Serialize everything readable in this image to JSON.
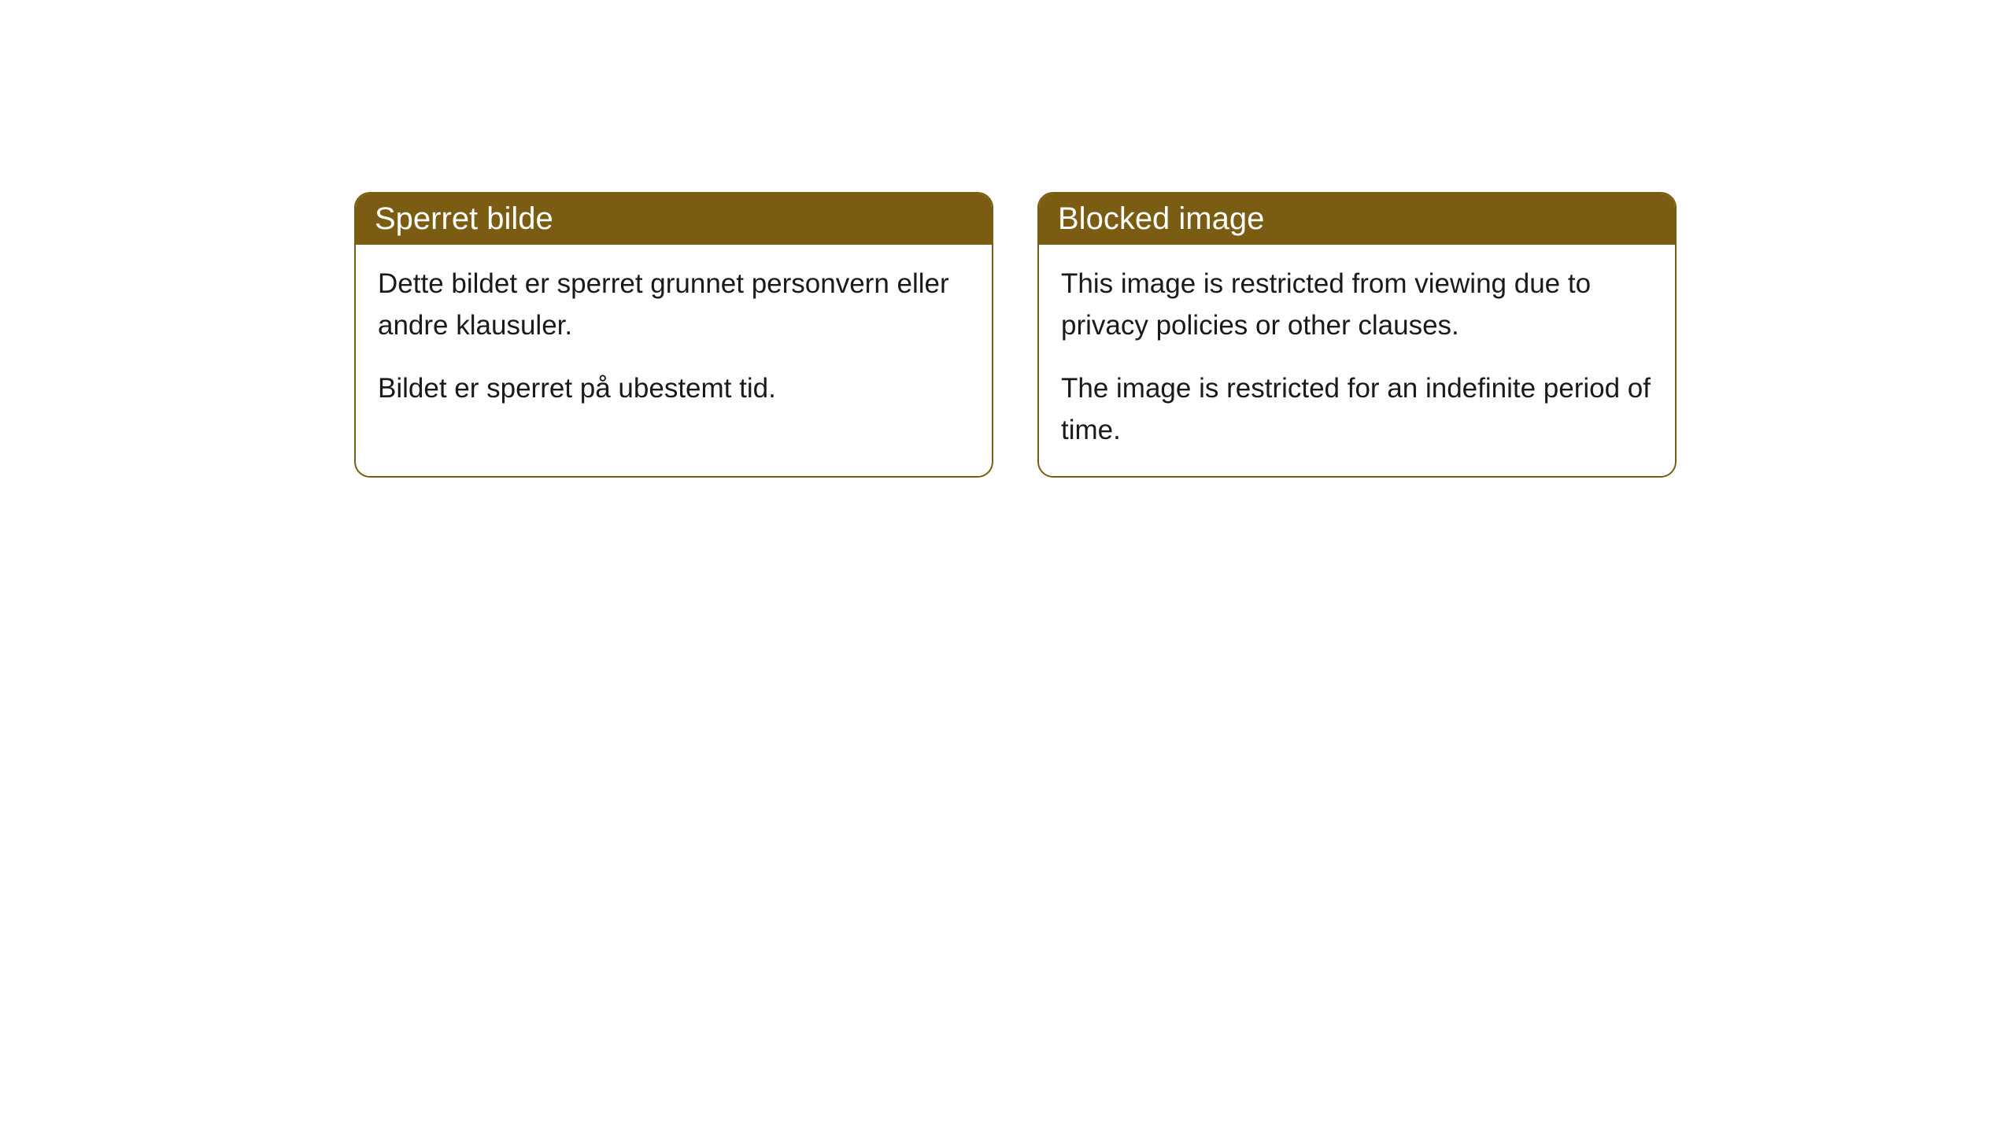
{
  "cards": [
    {
      "title": "Sperret bilde",
      "paragraph1": "Dette bildet er sperret grunnet personvern eller andre klausuler.",
      "paragraph2": "Bildet er sperret på ubestemt tid."
    },
    {
      "title": "Blocked image",
      "paragraph1": "This image is restricted from viewing due to privacy policies or other clauses.",
      "paragraph2": "The image is restricted for an indefinite period of time."
    }
  ],
  "style": {
    "header_bg_color": "#7a5c12",
    "header_text_color": "#ffffff",
    "body_bg_color": "#ffffff",
    "body_text_color": "#1a1a1a",
    "border_color": "#7a5c12",
    "border_radius": "20px",
    "title_fontsize": 40,
    "body_fontsize": 35
  }
}
